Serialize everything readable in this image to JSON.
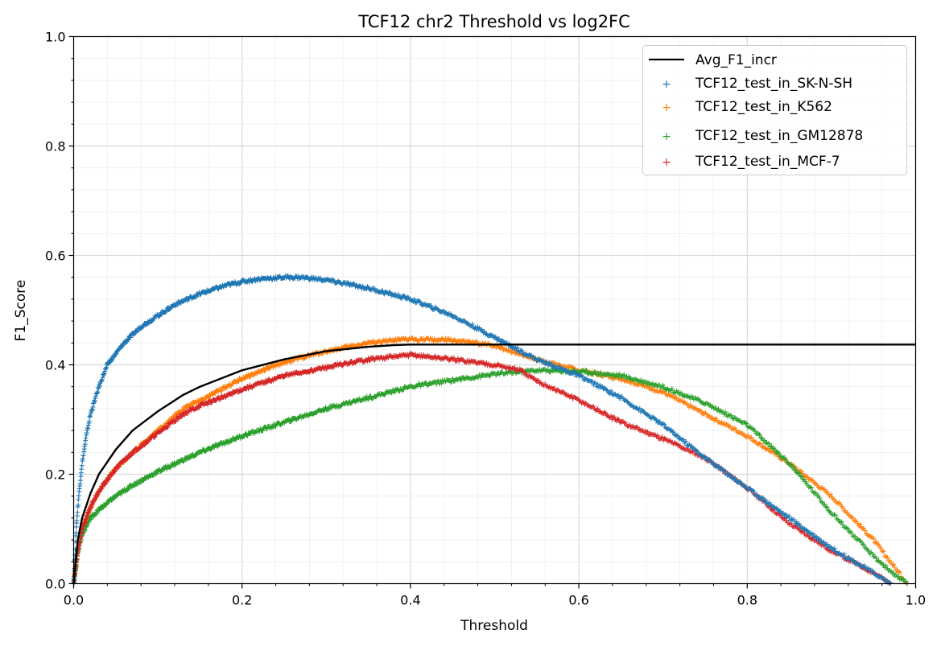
{
  "chart_data": {
    "type": "scatter",
    "title": "TCF12 chr2 Threshold vs log2FC",
    "xlabel": "Threshold",
    "ylabel": "F1_Score",
    "xlim": [
      0.0,
      1.0
    ],
    "ylim": [
      0.0,
      1.0
    ],
    "x_ticks": [
      "0.0",
      "0.2",
      "0.4",
      "0.6",
      "0.8",
      "1.0"
    ],
    "y_ticks": [
      "0.0",
      "0.2",
      "0.4",
      "0.6",
      "0.8",
      "1.0"
    ],
    "grid": true,
    "minor_grid": true,
    "legend_position": "top-right",
    "series": [
      {
        "name": "Avg_F1_incr",
        "kind": "line",
        "color": "#000000",
        "x": [
          0.0,
          0.005,
          0.01,
          0.02,
          0.03,
          0.05,
          0.07,
          0.1,
          0.13,
          0.15,
          0.2,
          0.25,
          0.3,
          0.35,
          0.38,
          0.4,
          0.45,
          0.5,
          0.6,
          0.7,
          0.8,
          0.9,
          1.0
        ],
        "y": [
          0.0,
          0.08,
          0.12,
          0.165,
          0.2,
          0.245,
          0.28,
          0.315,
          0.345,
          0.36,
          0.39,
          0.41,
          0.425,
          0.433,
          0.436,
          0.437,
          0.437,
          0.437,
          0.437,
          0.437,
          0.437,
          0.437,
          0.437
        ]
      },
      {
        "name": "TCF12_test_in_SK-N-SH",
        "kind": "markers",
        "color": "#1f77b4",
        "x": [
          0.0,
          0.003,
          0.006,
          0.01,
          0.015,
          0.02,
          0.03,
          0.04,
          0.05,
          0.06,
          0.08,
          0.1,
          0.12,
          0.15,
          0.18,
          0.2,
          0.22,
          0.25,
          0.27,
          0.3,
          0.35,
          0.4,
          0.45,
          0.5,
          0.55,
          0.6,
          0.65,
          0.7,
          0.75,
          0.8,
          0.85,
          0.9,
          0.95,
          0.97
        ],
        "y": [
          0.0,
          0.1,
          0.16,
          0.22,
          0.27,
          0.31,
          0.36,
          0.4,
          0.42,
          0.44,
          0.47,
          0.49,
          0.51,
          0.53,
          0.545,
          0.552,
          0.557,
          0.56,
          0.56,
          0.555,
          0.54,
          0.52,
          0.49,
          0.45,
          0.41,
          0.38,
          0.34,
          0.29,
          0.23,
          0.175,
          0.12,
          0.065,
          0.02,
          0.0
        ]
      },
      {
        "name": "TCF12_test_in_K562",
        "kind": "markers",
        "color": "#ff7f0e",
        "x": [
          0.0,
          0.005,
          0.01,
          0.02,
          0.03,
          0.05,
          0.07,
          0.1,
          0.13,
          0.15,
          0.2,
          0.25,
          0.3,
          0.35,
          0.4,
          0.45,
          0.5,
          0.55,
          0.6,
          0.65,
          0.7,
          0.75,
          0.8,
          0.85,
          0.9,
          0.95,
          0.98,
          0.99
        ],
        "y": [
          0.0,
          0.06,
          0.1,
          0.14,
          0.17,
          0.21,
          0.24,
          0.28,
          0.32,
          0.335,
          0.375,
          0.405,
          0.425,
          0.44,
          0.447,
          0.445,
          0.435,
          0.41,
          0.39,
          0.375,
          0.35,
          0.31,
          0.27,
          0.22,
          0.16,
          0.08,
          0.02,
          0.0
        ]
      },
      {
        "name": "TCF12_test_in_GM12878",
        "kind": "markers",
        "color": "#2ca02c",
        "x": [
          0.0,
          0.005,
          0.01,
          0.02,
          0.03,
          0.05,
          0.07,
          0.1,
          0.15,
          0.2,
          0.25,
          0.3,
          0.35,
          0.4,
          0.45,
          0.5,
          0.55,
          0.6,
          0.65,
          0.7,
          0.75,
          0.8,
          0.85,
          0.9,
          0.95,
          0.98,
          0.99
        ],
        "y": [
          0.0,
          0.06,
          0.09,
          0.12,
          0.135,
          0.16,
          0.18,
          0.205,
          0.24,
          0.27,
          0.295,
          0.32,
          0.34,
          0.36,
          0.372,
          0.383,
          0.39,
          0.388,
          0.38,
          0.36,
          0.33,
          0.29,
          0.22,
          0.13,
          0.05,
          0.01,
          0.0
        ]
      },
      {
        "name": "TCF12_test_in_MCF-7",
        "kind": "markers",
        "color": "#d62728",
        "x": [
          0.0,
          0.005,
          0.01,
          0.02,
          0.03,
          0.05,
          0.07,
          0.1,
          0.13,
          0.15,
          0.2,
          0.25,
          0.3,
          0.35,
          0.4,
          0.45,
          0.5,
          0.53,
          0.55,
          0.6,
          0.65,
          0.7,
          0.75,
          0.8,
          0.85,
          0.9,
          0.95,
          0.97
        ],
        "y": [
          0.0,
          0.06,
          0.1,
          0.14,
          0.17,
          0.21,
          0.24,
          0.275,
          0.31,
          0.325,
          0.355,
          0.38,
          0.395,
          0.41,
          0.418,
          0.41,
          0.4,
          0.39,
          0.37,
          0.335,
          0.295,
          0.265,
          0.23,
          0.175,
          0.11,
          0.06,
          0.02,
          0.0
        ]
      }
    ]
  }
}
